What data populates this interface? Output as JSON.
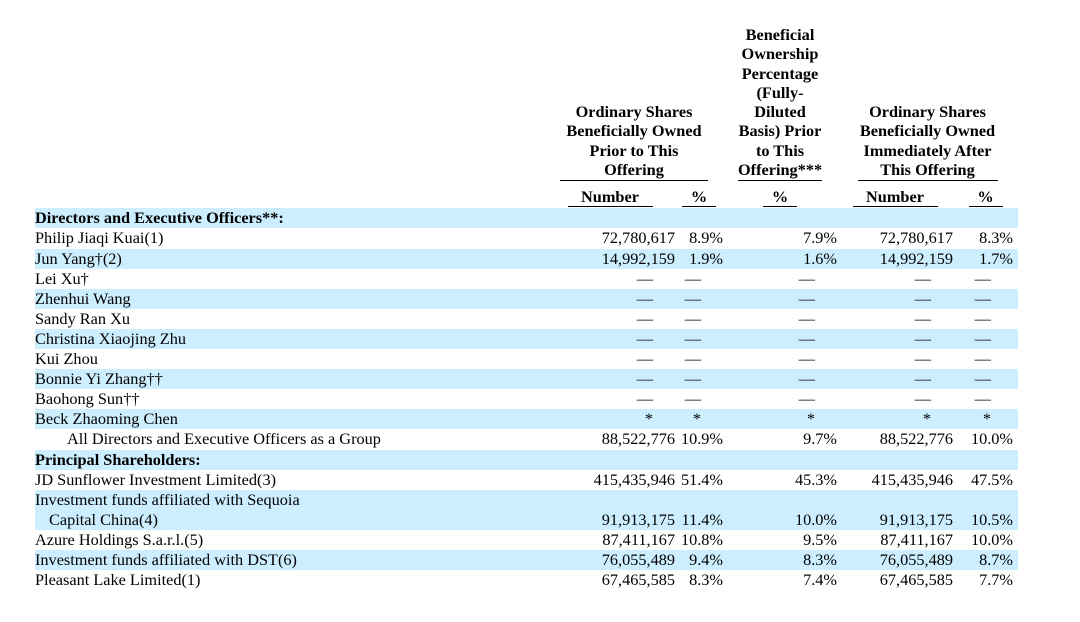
{
  "document": {
    "highlight_color": "#cceeff",
    "text_color": "#000000"
  },
  "table": {
    "column_groups": [
      {
        "title": "Ordinary Shares\nBeneficially Owned\nPrior to This\nOffering",
        "subcolumns": [
          "Number",
          "%"
        ]
      },
      {
        "title": "Beneficial\nOwnership\nPercentage\n(Fully-\nDiluted\nBasis) Prior\nto This\nOffering***",
        "subcolumns": [
          "%"
        ]
      },
      {
        "title": "Ordinary Shares\nBeneficially Owned\nImmediately After\nThis Offering",
        "subcolumns": [
          "Number",
          "%"
        ]
      }
    ],
    "rows": [
      {
        "label": "Directors and Executive Officers**:",
        "bold": true,
        "highlight": true,
        "values": [
          "",
          "",
          "",
          "",
          ""
        ]
      },
      {
        "label": "Philip Jiaqi Kuai(1)",
        "bold": false,
        "highlight": false,
        "values": [
          "72,780,617",
          "8.9%",
          "7.9%",
          "72,780,617",
          "8.3%"
        ]
      },
      {
        "label": "Jun Yang†(2)",
        "bold": false,
        "highlight": true,
        "values": [
          "14,992,159",
          "1.9%",
          "1.6%",
          "14,992,159",
          "1.7%"
        ]
      },
      {
        "label": "Lei Xu†",
        "bold": false,
        "highlight": false,
        "values": [
          "—",
          "—",
          "—",
          "—",
          "—"
        ]
      },
      {
        "label": "Zhenhui Wang",
        "bold": false,
        "highlight": true,
        "values": [
          "—",
          "—",
          "—",
          "—",
          "—"
        ]
      },
      {
        "label": "Sandy Ran Xu",
        "bold": false,
        "highlight": false,
        "values": [
          "—",
          "—",
          "—",
          "—",
          "—"
        ]
      },
      {
        "label": "Christina Xiaojing Zhu",
        "bold": false,
        "highlight": true,
        "values": [
          "—",
          "—",
          "—",
          "—",
          "—"
        ]
      },
      {
        "label": "Kui Zhou",
        "bold": false,
        "highlight": false,
        "values": [
          "—",
          "—",
          "—",
          "—",
          "—"
        ]
      },
      {
        "label": "Bonnie Yi Zhang††",
        "bold": false,
        "highlight": true,
        "values": [
          "—",
          "—",
          "—",
          "—",
          "—"
        ]
      },
      {
        "label": "Baohong Sun††",
        "bold": false,
        "highlight": false,
        "values": [
          "—",
          "—",
          "—",
          "—",
          "—"
        ]
      },
      {
        "label": "Beck Zhaoming Chen",
        "bold": false,
        "highlight": true,
        "values": [
          "*",
          "*",
          "*",
          "*",
          "*"
        ]
      },
      {
        "label": "All Directors and Executive Officers as a Group",
        "bold": false,
        "indent": true,
        "highlight": false,
        "values": [
          "88,522,776",
          "10.9%",
          "9.7%",
          "88,522,776",
          "10.0%"
        ]
      },
      {
        "label": "Principal Shareholders:",
        "bold": true,
        "highlight": true,
        "values": [
          "",
          "",
          "",
          "",
          ""
        ]
      },
      {
        "label": "JD Sunflower Investment Limited(3)",
        "bold": false,
        "highlight": false,
        "values": [
          "415,435,946",
          "51.4%",
          "45.3%",
          "415,435,946",
          "47.5%"
        ]
      },
      {
        "label": "Investment funds affiliated with Sequoia",
        "label2": "Capital China(4)",
        "bold": false,
        "highlight": true,
        "values": [
          "91,913,175",
          "11.4%",
          "10.0%",
          "91,913,175",
          "10.5%"
        ]
      },
      {
        "label": "Azure Holdings S.a.r.l.(5)",
        "bold": false,
        "highlight": false,
        "values": [
          "87,411,167",
          "10.8%",
          "9.5%",
          "87,411,167",
          "10.0%"
        ]
      },
      {
        "label": "Investment funds affiliated with DST(6)",
        "bold": false,
        "highlight": true,
        "values": [
          "76,055,489",
          "9.4%",
          "8.3%",
          "76,055,489",
          "8.7%"
        ]
      },
      {
        "label": "Pleasant Lake Limited(1)",
        "bold": false,
        "highlight": false,
        "values": [
          "67,465,585",
          "8.3%",
          "7.4%",
          "67,465,585",
          "7.7%"
        ]
      }
    ]
  }
}
